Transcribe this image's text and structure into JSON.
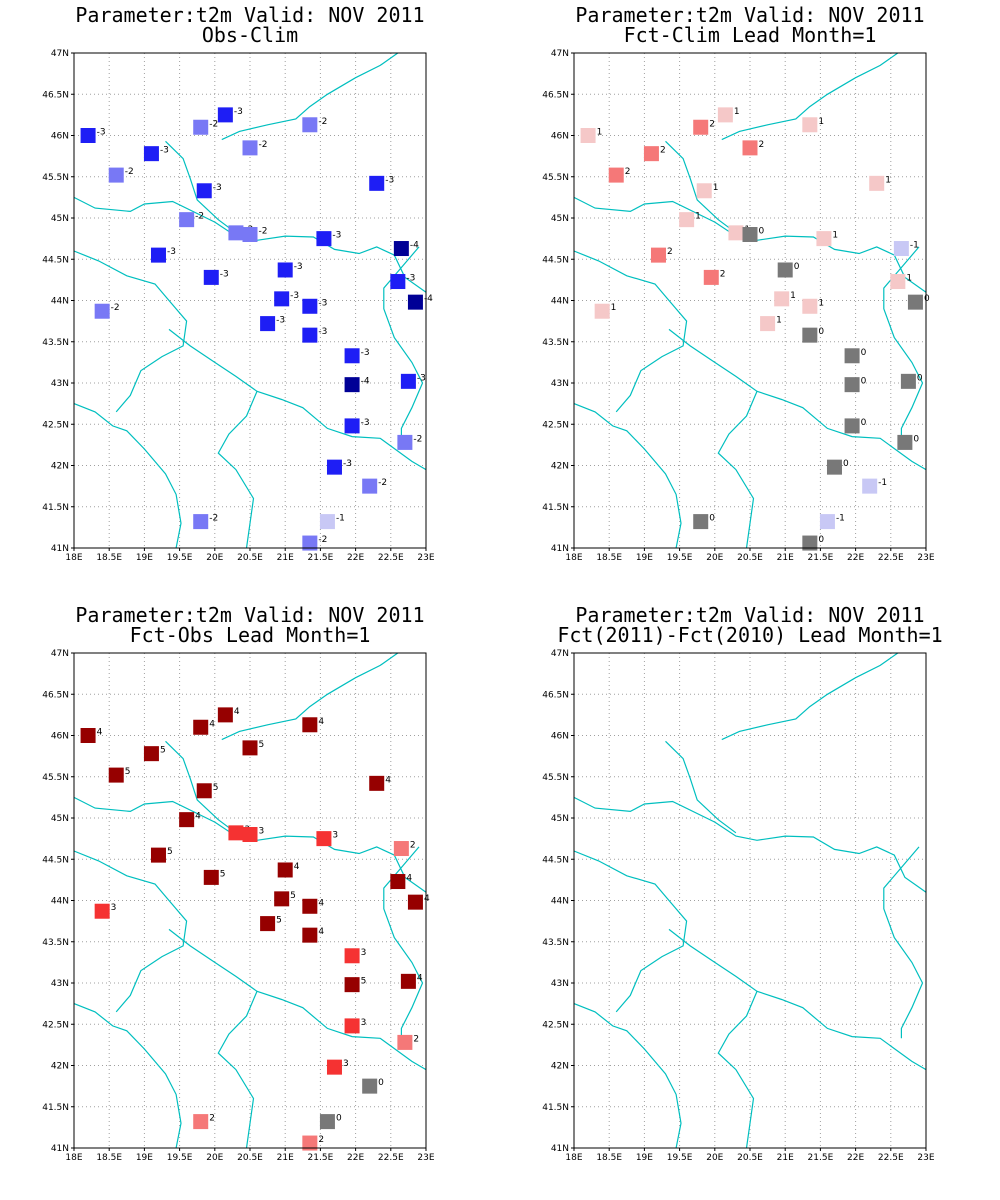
{
  "colors": {
    "coast": "#00bfbf",
    "grid": "#a0a0a0",
    "frame": "#000000",
    "scale": {
      "-4": "#000096",
      "-3": "#1e1ef5",
      "-2": "#7878f5",
      "-1": "#c8c8f5",
      "0": "#787878",
      "1": "#f5c8c8",
      "2": "#f57878",
      "3": "#f53232",
      "4": "#960000",
      "5": "#960000"
    }
  },
  "axes": {
    "lon_range": [
      18,
      23
    ],
    "lat_range": [
      41,
      47
    ],
    "x_ticks": [
      "18E",
      "18.5E",
      "19E",
      "19.5E",
      "20E",
      "20.5E",
      "21E",
      "21.5E",
      "22E",
      "22.5E",
      "23E"
    ],
    "y_ticks": [
      "41N",
      "41.5N",
      "42N",
      "42.5N",
      "43N",
      "43.5N",
      "44N",
      "44.5N",
      "45N",
      "45.5N",
      "46N",
      "46.5N",
      "47N"
    ]
  },
  "stations": [
    [
      18.2,
      46.0
    ],
    [
      20.15,
      46.25
    ],
    [
      19.8,
      46.1
    ],
    [
      21.35,
      46.13
    ],
    [
      19.1,
      45.78
    ],
    [
      20.5,
      45.85
    ],
    [
      18.6,
      45.52
    ],
    [
      22.3,
      45.42
    ],
    [
      19.85,
      45.33
    ],
    [
      19.6,
      44.98
    ],
    [
      20.3,
      44.82
    ],
    [
      20.5,
      44.8
    ],
    [
      21.55,
      44.75
    ],
    [
      22.65,
      44.63
    ],
    [
      19.2,
      44.55
    ],
    [
      21.0,
      44.37
    ],
    [
      19.95,
      44.28
    ],
    [
      22.6,
      44.23
    ],
    [
      20.95,
      44.02
    ],
    [
      22.85,
      43.98
    ],
    [
      18.4,
      43.87
    ],
    [
      21.35,
      43.93
    ],
    [
      20.75,
      43.72
    ],
    [
      21.35,
      43.58
    ],
    [
      21.95,
      43.33
    ],
    [
      21.95,
      42.98
    ],
    [
      22.75,
      43.02
    ],
    [
      21.95,
      42.48
    ],
    [
      22.7,
      42.28
    ],
    [
      21.7,
      41.98
    ],
    [
      22.2,
      41.75
    ],
    [
      19.8,
      41.32
    ],
    [
      21.6,
      41.32
    ],
    [
      21.35,
      41.06
    ]
  ],
  "coastline_paths": [
    [
      [
        18.0,
        42.75
      ],
      [
        18.3,
        42.65
      ],
      [
        18.55,
        42.48
      ],
      [
        18.75,
        42.42
      ],
      [
        19.0,
        42.2
      ],
      [
        19.3,
        41.9
      ],
      [
        19.45,
        41.65
      ],
      [
        19.52,
        41.3
      ],
      [
        19.45,
        41.0
      ]
    ],
    [
      [
        18.0,
        45.25
      ],
      [
        18.3,
        45.12
      ],
      [
        18.8,
        45.08
      ],
      [
        19.0,
        45.17
      ],
      [
        19.4,
        45.2
      ],
      [
        20.0,
        44.95
      ],
      [
        20.3,
        44.78
      ],
      [
        20.6,
        44.73
      ],
      [
        21.0,
        44.78
      ],
      [
        21.4,
        44.77
      ],
      [
        21.7,
        44.62
      ],
      [
        22.05,
        44.57
      ],
      [
        22.3,
        44.65
      ],
      [
        22.55,
        44.55
      ],
      [
        22.7,
        44.28
      ],
      [
        23.0,
        44.1
      ]
    ],
    [
      [
        20.1,
        45.95
      ],
      [
        20.35,
        46.05
      ],
      [
        20.75,
        46.13
      ],
      [
        21.15,
        46.2
      ],
      [
        21.35,
        46.35
      ],
      [
        21.6,
        46.5
      ],
      [
        22.0,
        46.7
      ],
      [
        22.35,
        46.85
      ],
      [
        22.6,
        47.0
      ]
    ],
    [
      [
        19.3,
        45.93
      ],
      [
        19.55,
        45.72
      ],
      [
        19.65,
        45.48
      ],
      [
        19.75,
        45.22
      ],
      [
        20.05,
        44.98
      ],
      [
        20.3,
        44.82
      ]
    ],
    [
      [
        18.0,
        44.6
      ],
      [
        18.35,
        44.48
      ],
      [
        18.75,
        44.3
      ],
      [
        19.15,
        44.2
      ],
      [
        19.35,
        44.0
      ],
      [
        19.6,
        43.75
      ],
      [
        19.55,
        43.45
      ],
      [
        19.25,
        43.32
      ],
      [
        18.95,
        43.15
      ],
      [
        18.8,
        42.85
      ],
      [
        18.6,
        42.65
      ]
    ],
    [
      [
        19.35,
        43.65
      ],
      [
        19.65,
        43.45
      ],
      [
        20.0,
        43.25
      ],
      [
        20.3,
        43.08
      ],
      [
        20.6,
        42.9
      ],
      [
        20.45,
        42.6
      ],
      [
        20.2,
        42.38
      ],
      [
        20.05,
        42.15
      ],
      [
        20.3,
        41.95
      ],
      [
        20.55,
        41.6
      ],
      [
        20.5,
        41.3
      ],
      [
        20.45,
        41.0
      ]
    ],
    [
      [
        20.6,
        42.9
      ],
      [
        20.95,
        42.8
      ],
      [
        21.25,
        42.7
      ],
      [
        21.6,
        42.45
      ],
      [
        21.95,
        42.35
      ],
      [
        22.35,
        42.33
      ],
      [
        22.8,
        42.05
      ],
      [
        23.0,
        41.95
      ]
    ],
    [
      [
        22.9,
        44.65
      ],
      [
        22.65,
        44.4
      ],
      [
        22.4,
        44.15
      ],
      [
        22.4,
        43.9
      ],
      [
        22.55,
        43.55
      ],
      [
        22.8,
        43.25
      ],
      [
        22.95,
        43.0
      ],
      [
        22.8,
        42.7
      ],
      [
        22.65,
        42.45
      ],
      [
        22.65,
        42.33
      ]
    ]
  ],
  "panels": [
    {
      "title": "Parameter:t2m Valid: NOV 2011",
      "subtitle": "Obs-Clim",
      "values": [
        -3,
        -3,
        -2,
        -2,
        -3,
        -2,
        -2,
        -3,
        -3,
        -2,
        -2,
        -2,
        -3,
        -4,
        -3,
        -3,
        -3,
        -3,
        -3,
        -4,
        -2,
        -3,
        -3,
        -3,
        -3,
        -4,
        -3,
        -3,
        -2,
        -3,
        -2,
        -2,
        -1,
        -2
      ]
    },
    {
      "title": "Parameter:t2m Valid: NOV 2011",
      "subtitle": "Fct-Clim Lead Month=1",
      "values": [
        1,
        1,
        2,
        1,
        2,
        2,
        2,
        1,
        1,
        1,
        1,
        0,
        1,
        -1,
        2,
        0,
        2,
        1,
        1,
        0,
        1,
        1,
        1,
        0,
        0,
        0,
        0,
        0,
        0,
        0,
        -1,
        0,
        -1,
        0
      ]
    },
    {
      "title": "Parameter:t2m Valid: NOV 2011",
      "subtitle": "Fct-Obs Lead Month=1",
      "values": [
        4,
        4,
        4,
        4,
        5,
        5,
        5,
        4,
        5,
        4,
        3,
        3,
        3,
        2,
        5,
        4,
        5,
        4,
        5,
        4,
        3,
        4,
        5,
        4,
        3,
        5,
        4,
        3,
        2,
        3,
        0,
        2,
        0,
        2
      ]
    },
    {
      "title": "Parameter:t2m Valid: NOV 2011",
      "subtitle": "Fct(2011)-Fct(2010) Lead Month=1",
      "values": []
    }
  ]
}
